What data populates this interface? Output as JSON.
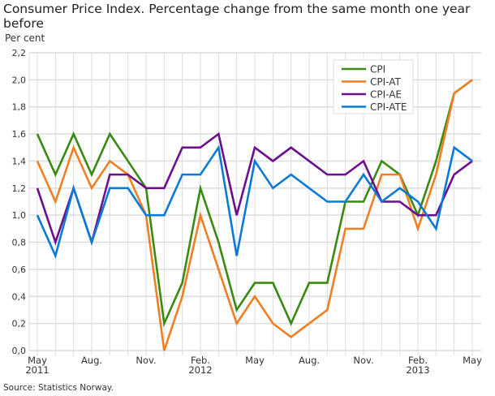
{
  "chart_data": {
    "type": "line",
    "title": "Consumer Price Index. Percentage change from the same month one year before",
    "ylabel": "Per cent",
    "source": "Source: Statistics Norway.",
    "ylim": [
      0,
      2.2
    ],
    "yticks": [
      "0,0",
      "0,2",
      "0,4",
      "0,6",
      "0,8",
      "1,0",
      "1,2",
      "1,4",
      "1,6",
      "1,8",
      "2,0",
      "2,2"
    ],
    "x": [
      "2011-05",
      "2011-06",
      "2011-07",
      "2011-08",
      "2011-09",
      "2011-10",
      "2011-11",
      "2011-12",
      "2012-01",
      "2012-02",
      "2012-03",
      "2012-04",
      "2012-05",
      "2012-06",
      "2012-07",
      "2012-08",
      "2012-09",
      "2012-10",
      "2012-11",
      "2012-12",
      "2013-01",
      "2013-02",
      "2013-03",
      "2013-04",
      "2013-05"
    ],
    "xticks": [
      {
        "month": "May",
        "year": "2011"
      },
      {
        "month": "Aug.",
        "year": ""
      },
      {
        "month": "Nov.",
        "year": ""
      },
      {
        "month": "Feb.",
        "year": "2012"
      },
      {
        "month": "May",
        "year": ""
      },
      {
        "month": "Aug.",
        "year": ""
      },
      {
        "month": "Nov.",
        "year": ""
      },
      {
        "month": "Feb.",
        "year": "2013"
      },
      {
        "month": "May",
        "year": ""
      }
    ],
    "grid": true,
    "legend_position": "top-right",
    "series": [
      {
        "name": "CPI",
        "color": "#3a8a12",
        "values": [
          1.6,
          1.3,
          1.6,
          1.3,
          1.6,
          1.4,
          1.2,
          0.2,
          0.5,
          1.2,
          0.8,
          0.3,
          0.5,
          0.5,
          0.2,
          0.5,
          0.5,
          1.1,
          1.1,
          1.4,
          1.3,
          1.0,
          1.4,
          1.9,
          2.0
        ]
      },
      {
        "name": "CPI-AT",
        "color": "#f07f24",
        "values": [
          1.4,
          1.1,
          1.5,
          1.2,
          1.4,
          1.3,
          1.0,
          0.0,
          0.4,
          1.0,
          0.6,
          0.2,
          0.4,
          0.2,
          0.1,
          0.2,
          0.3,
          0.9,
          0.9,
          1.3,
          1.3,
          0.9,
          1.3,
          1.9,
          2.0
        ]
      },
      {
        "name": "CPI-AE",
        "color": "#6b0f8c",
        "values": [
          1.2,
          0.8,
          1.2,
          0.8,
          1.3,
          1.3,
          1.2,
          1.2,
          1.5,
          1.5,
          1.6,
          1.0,
          1.5,
          1.4,
          1.5,
          1.4,
          1.3,
          1.3,
          1.4,
          1.1,
          1.1,
          1.0,
          1.0,
          1.3,
          1.4
        ]
      },
      {
        "name": "CPI-ATE",
        "color": "#0a7ad6",
        "values": [
          1.0,
          0.7,
          1.2,
          0.8,
          1.2,
          1.2,
          1.0,
          1.0,
          1.3,
          1.3,
          1.5,
          0.7,
          1.4,
          1.2,
          1.3,
          1.2,
          1.1,
          1.1,
          1.3,
          1.1,
          1.2,
          1.1,
          0.9,
          1.5,
          1.4
        ]
      }
    ]
  }
}
